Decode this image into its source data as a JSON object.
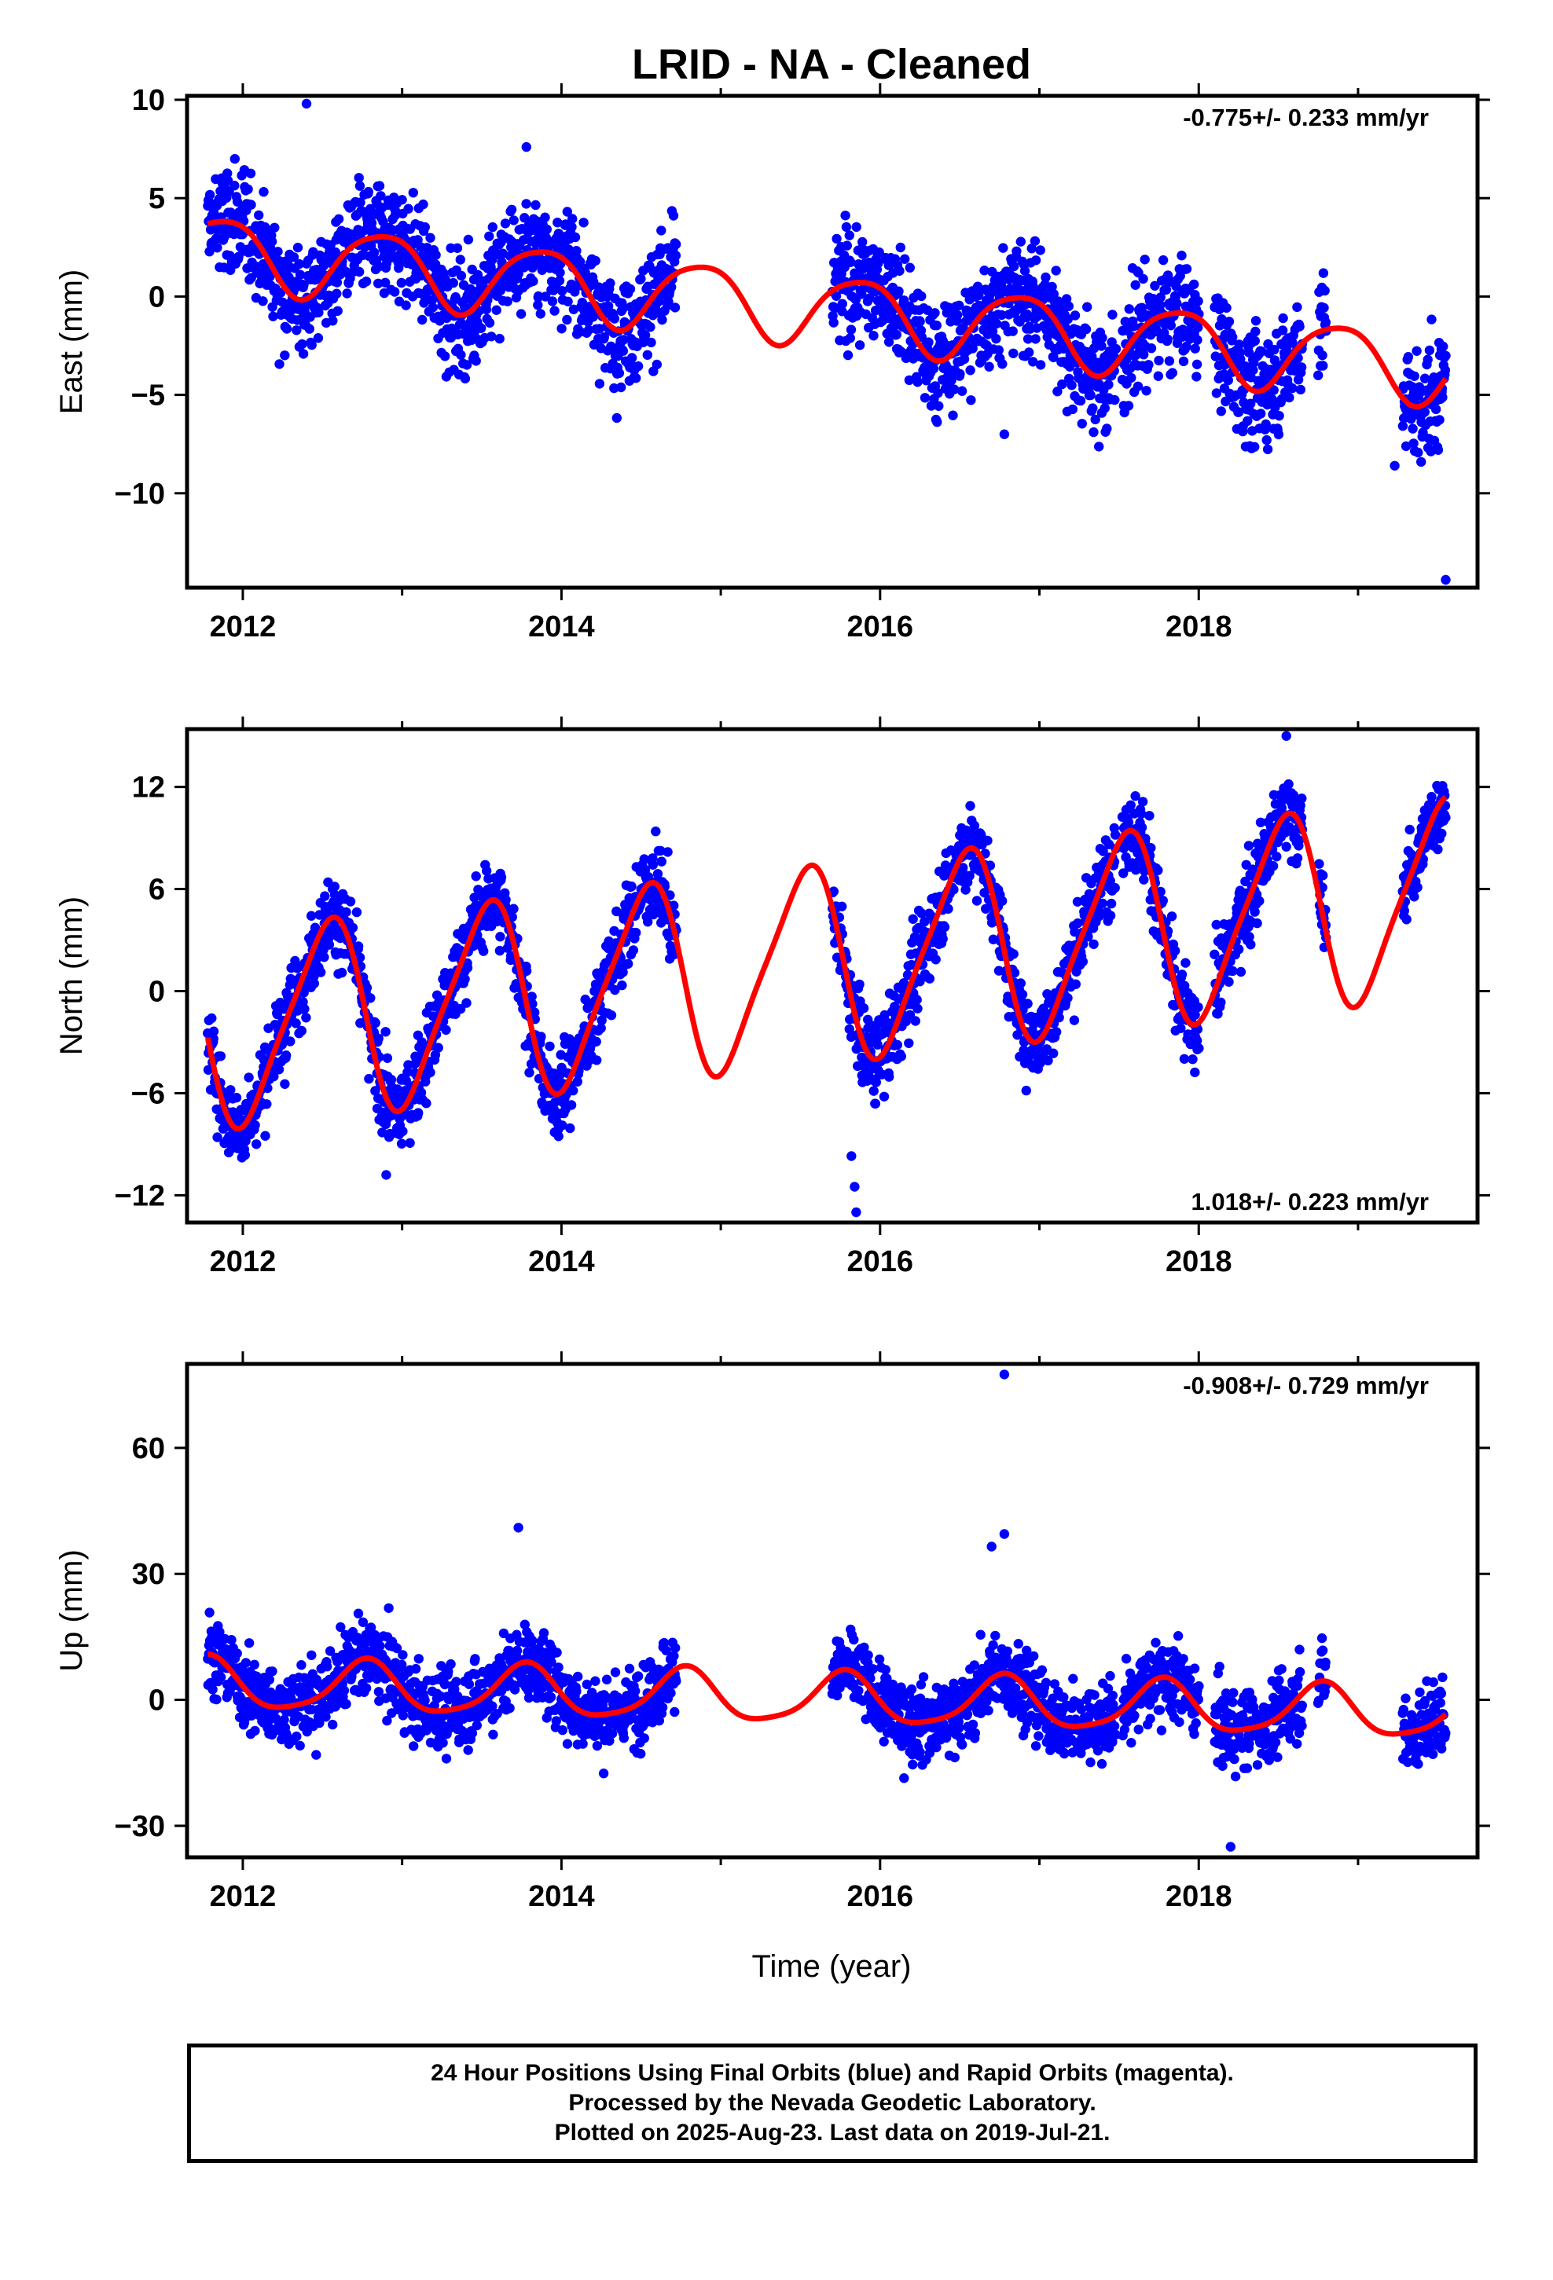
{
  "chart_data": {
    "title": "LRID  - NA - Cleaned",
    "xlabel": "Time (year)",
    "xlim": [
      2011.65,
      2019.75
    ],
    "x_ticks": [
      2012,
      2014,
      2016,
      2018
    ],
    "legend": "none",
    "grid": false,
    "colors": {
      "observed": "#0000ff",
      "model": "#ff0000",
      "frame": "#000000"
    },
    "panels": [
      {
        "id": "east",
        "type": "scatter",
        "ylabel": "East (mm)",
        "ylim": [
          -14.8,
          10.2
        ],
        "y_ticks": [
          10,
          5,
          0,
          -5,
          -10
        ],
        "rate_label": "-0.775+/- 0.233 mm/yr",
        "rate_position": "top-right",
        "data_windows": [
          [
            2011.78,
            2014.72
          ],
          [
            2015.7,
            2017.48
          ],
          [
            2017.52,
            2018.0
          ],
          [
            2018.1,
            2018.65
          ],
          [
            2018.75,
            2018.8
          ],
          [
            2019.28,
            2019.55
          ]
        ],
        "outliers": [
          [
            2012.4,
            9.8
          ],
          [
            2013.78,
            7.6
          ],
          [
            2019.55,
            -14.4
          ],
          [
            2016.78,
            -7.0
          ],
          [
            2019.23,
            -8.6
          ]
        ],
        "model": {
          "offset": 2.2,
          "trend": -0.775,
          "t0": 2012.0,
          "annual": 1.8,
          "annual_phase": 2012.87,
          "semiannual": 0.3,
          "semiannual_phase": 2012.1
        },
        "noise_sd": 1.4
      },
      {
        "id": "north",
        "type": "scatter",
        "ylabel": "North (mm)",
        "ylim": [
          -13.6,
          15.4
        ],
        "y_ticks": [
          12,
          6,
          0,
          -6,
          -12
        ],
        "rate_label": "1.018+/- 0.223 mm/yr",
        "rate_position": "bottom-right",
        "data_windows": [
          [
            2011.78,
            2014.72
          ],
          [
            2015.7,
            2017.48
          ],
          [
            2017.52,
            2018.0
          ],
          [
            2018.1,
            2018.65
          ],
          [
            2018.75,
            2018.8
          ],
          [
            2019.28,
            2019.55
          ]
        ],
        "outliers": [
          [
            2015.85,
            -13.0
          ],
          [
            2015.84,
            -11.5
          ],
          [
            2015.82,
            -9.7
          ],
          [
            2018.55,
            15.0
          ],
          [
            2012.9,
            -10.8
          ]
        ],
        "model": {
          "offset": -2.1,
          "trend": 1.018,
          "t0": 2012.0,
          "annual": 5.6,
          "annual_phase": 2012.52,
          "semiannual": 1.0,
          "semiannual_phase": 2012.15
        },
        "noise_sd": 1.2
      },
      {
        "id": "up",
        "type": "scatter",
        "ylabel": "Up (mm)",
        "ylim": [
          -37.5,
          80.0
        ],
        "y_ticks": [
          60,
          30,
          0,
          -30
        ],
        "rate_label": "-0.908+/- 0.729 mm/yr",
        "rate_position": "top-right",
        "data_windows": [
          [
            2011.78,
            2014.72
          ],
          [
            2015.7,
            2017.48
          ],
          [
            2017.52,
            2018.0
          ],
          [
            2018.1,
            2018.65
          ],
          [
            2018.75,
            2018.8
          ],
          [
            2019.28,
            2019.55
          ]
        ],
        "outliers": [
          [
            2016.78,
            77.5
          ],
          [
            2013.73,
            41.0
          ],
          [
            2016.78,
            39.5
          ],
          [
            2016.7,
            36.5
          ],
          [
            2018.2,
            -35.0
          ]
        ],
        "model": {
          "offset": 3.5,
          "trend": -0.908,
          "t0": 2012.0,
          "annual": 6.0,
          "annual_phase": 2012.77,
          "semiannual": 1.2,
          "semiannual_phase": 2012.3
        },
        "noise_sd": 4.5
      }
    ]
  },
  "footer": {
    "line1": "24 Hour Positions Using Final Orbits (blue) and Rapid Orbits (magenta).",
    "line2": "Processed by the Nevada Geodetic Laboratory.",
    "line3": "Plotted on 2025-Aug-23. Last data on 2019-Jul-21."
  }
}
